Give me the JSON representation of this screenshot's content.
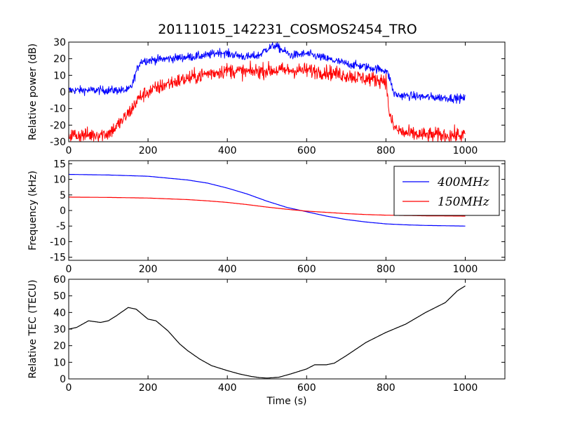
{
  "figure": {
    "title": "20111015_142231_COSMOS2454_TRO"
  },
  "chart_data": [
    {
      "type": "line",
      "id": "power",
      "title": "",
      "xlabel": "",
      "ylabel": "Relative power (dB)",
      "xlim": [
        0,
        1100
      ],
      "ylim": [
        -30,
        30
      ],
      "xticks": [
        0,
        200,
        400,
        600,
        800,
        1000
      ],
      "yticks": [
        -30,
        -20,
        -10,
        0,
        10,
        20,
        30
      ],
      "grid": false,
      "legend": "none",
      "series": [
        {
          "color": "#0000ff",
          "noise": 1.8,
          "x": [
            0,
            50,
            100,
            150,
            160,
            170,
            180,
            190,
            200,
            250,
            300,
            350,
            380,
            400,
            450,
            480,
            500,
            520,
            540,
            560,
            600,
            650,
            700,
            750,
            800,
            810,
            820,
            830,
            900,
            1000
          ],
          "y": [
            1,
            1,
            1,
            1,
            4,
            12,
            18,
            19,
            19,
            20,
            21,
            22,
            24,
            23,
            21,
            22,
            26,
            28,
            25,
            22,
            23,
            20,
            17,
            15,
            13,
            8,
            -1,
            -2,
            -3,
            -4
          ]
        },
        {
          "color": "#ff0000",
          "noise": 3.2,
          "x": [
            0,
            50,
            100,
            120,
            140,
            160,
            170,
            180,
            200,
            250,
            300,
            350,
            400,
            450,
            500,
            550,
            600,
            650,
            700,
            750,
            800,
            805,
            810,
            820,
            830,
            850,
            900,
            1000
          ],
          "y": [
            -26,
            -26,
            -25,
            -21,
            -16,
            -10,
            -6,
            -3,
            0,
            5,
            8,
            11,
            13,
            12,
            13,
            13,
            13,
            12,
            10,
            8,
            7,
            -5,
            -15,
            -21,
            -23,
            -25,
            -26,
            -26
          ]
        }
      ]
    },
    {
      "type": "line",
      "id": "frequency",
      "title": "",
      "xlabel": "",
      "ylabel": "Frequency (kHz)",
      "xlim": [
        0,
        1100
      ],
      "ylim": [
        -16,
        16
      ],
      "xticks": [
        0,
        200,
        400,
        600,
        800,
        1000
      ],
      "yticks": [
        -15,
        -10,
        -5,
        0,
        5,
        10,
        15
      ],
      "grid": false,
      "legend": "top-right",
      "series": [
        {
          "name": "400MHz",
          "color": "#0000ff",
          "x": [
            0,
            100,
            200,
            300,
            350,
            400,
            450,
            500,
            550,
            600,
            650,
            700,
            750,
            800,
            850,
            900,
            1000
          ],
          "y": [
            11.6,
            11.4,
            11.0,
            9.8,
            8.8,
            7.2,
            5.3,
            3.0,
            1.0,
            -0.4,
            -1.8,
            -2.9,
            -3.7,
            -4.3,
            -4.6,
            -4.8,
            -5.0
          ]
        },
        {
          "name": "150MHz",
          "color": "#ff0000",
          "x": [
            0,
            100,
            200,
            300,
            350,
            400,
            450,
            500,
            550,
            600,
            650,
            700,
            750,
            800,
            850,
            900,
            1000
          ],
          "y": [
            4.3,
            4.2,
            4.0,
            3.5,
            3.1,
            2.6,
            1.9,
            1.1,
            0.4,
            -0.2,
            -0.6,
            -1.0,
            -1.3,
            -1.5,
            -1.6,
            -1.7,
            -1.8
          ]
        }
      ]
    },
    {
      "type": "line",
      "id": "tec",
      "title": "",
      "xlabel": "Time (s)",
      "ylabel": "Relative TEC (TECU)",
      "xlim": [
        0,
        1100
      ],
      "ylim": [
        0,
        60
      ],
      "xticks": [
        0,
        200,
        400,
        600,
        800,
        1000
      ],
      "yticks": [
        0,
        10,
        20,
        30,
        40,
        50,
        60
      ],
      "grid": false,
      "legend": "none",
      "series": [
        {
          "color": "#000000",
          "x": [
            0,
            20,
            50,
            80,
            100,
            120,
            150,
            170,
            200,
            220,
            250,
            280,
            300,
            330,
            360,
            400,
            430,
            460,
            480,
            500,
            530,
            560,
            600,
            620,
            650,
            670,
            700,
            750,
            800,
            850,
            900,
            950,
            980,
            1000
          ],
          "y": [
            30,
            31,
            35,
            34,
            35,
            38,
            43,
            42,
            36,
            35,
            29,
            21,
            17,
            12,
            8,
            5,
            3,
            1.5,
            0.8,
            0.5,
            1,
            3,
            6,
            8.5,
            8.5,
            9.5,
            14,
            22,
            28,
            33,
            40,
            46,
            53,
            56
          ]
        }
      ]
    }
  ]
}
